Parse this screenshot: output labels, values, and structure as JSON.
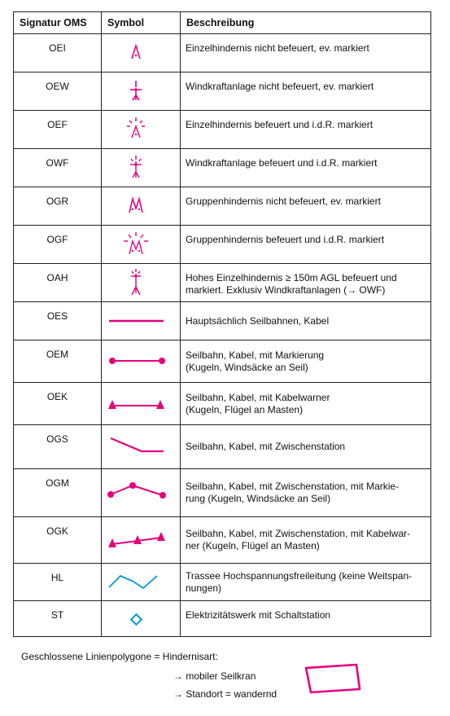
{
  "headers": {
    "signature": "Signatur OMS",
    "symbol": "Symbol",
    "description": "Beschreibung"
  },
  "rows": [
    {
      "code": "OEI",
      "icon": "obstacle-single-unlit-icon",
      "desc_lines": [
        "Einzelhindernis nicht befeuert, ev. markiert"
      ]
    },
    {
      "code": "OEW",
      "icon": "wind-turbine-unlit-icon",
      "desc_lines": [
        "Windkraftanlage nicht befeuert, ev. markiert"
      ]
    },
    {
      "code": "OEF",
      "icon": "obstacle-single-lit-icon",
      "desc_lines": [
        "Einzelhindernis befeuert und i.d.R. markiert"
      ]
    },
    {
      "code": "OWF",
      "icon": "wind-turbine-lit-icon",
      "desc_lines": [
        "Windkraftanlage befeuert und i.d.R. markiert"
      ]
    },
    {
      "code": "OGR",
      "icon": "obstacle-group-unlit-icon",
      "desc_lines": [
        "Gruppenhindernis nicht befeuert, ev. markiert"
      ]
    },
    {
      "code": "OGF",
      "icon": "obstacle-group-lit-icon",
      "desc_lines": [
        "Gruppenhindernis befeuert und i.d.R. markiert"
      ]
    },
    {
      "code": "OAH",
      "icon": "obstacle-high-lit-icon",
      "desc_lines": [
        "Hohes Einzelhindernis ≥ 150m AGL befeuert und",
        "markiert. Exklusiv Windkraftanlagen (→ OWF)"
      ]
    },
    {
      "code": "OES",
      "icon": "cable-line-icon",
      "desc_lines": [
        "Hauptsächlich Seilbahnen, Kabel"
      ]
    },
    {
      "code": "OEM",
      "icon": "cable-marked-icon",
      "desc_lines": [
        "Seilbahn, Kabel, mit Markierung",
        "(Kugeln, Windsäcke an Seil)"
      ]
    },
    {
      "code": "OEK",
      "icon": "cable-warner-icon",
      "desc_lines": [
        "Seilbahn, Kabel, mit Kabelwarner",
        "(Kugeln, Flügel an Masten)"
      ]
    },
    {
      "code": "OGS",
      "icon": "cable-intermediate-station-icon",
      "desc_lines": [
        "Seilbahn, Kabel, mit Zwischenstation"
      ]
    },
    {
      "code": "OGM",
      "icon": "cable-station-marked-icon",
      "desc_lines": [
        "Seilbahn, Kabel, mit Zwischenstation, mit Markie-",
        "rung (Kugeln, Windsäcke an Seil)"
      ]
    },
    {
      "code": "OGK",
      "icon": "cable-station-warner-icon",
      "desc_lines": [
        "Seilbahn, Kabel, mit Zwischenstation, mit Kabelwar-",
        "ner (Kugeln, Flügel an Masten)"
      ]
    },
    {
      "code": "HL",
      "icon": "power-line-icon",
      "desc_lines": [
        "Trassee Hochspannungsfreileitung (keine Weitspan-",
        "nungen)"
      ]
    },
    {
      "code": "ST",
      "icon": "power-station-icon",
      "desc_lines": [
        "Elektrizitätswerk mit Schaltstation"
      ]
    }
  ],
  "footnote": {
    "title": "Geschlossene Linienpolygone = Hindernisart:",
    "line1": "→ mobiler Seilkran",
    "line2": "→ Standort = wandernd",
    "icon": "closed-polygon-icon"
  },
  "colors": {
    "magenta": "#e6007e",
    "cyan": "#0098d8",
    "border": "#222222"
  }
}
